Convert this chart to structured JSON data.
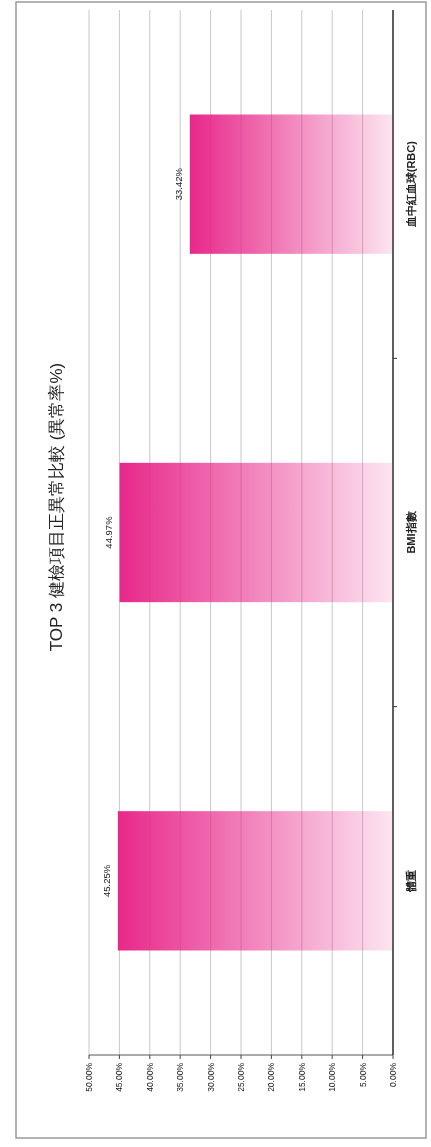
{
  "chart_data": {
    "type": "bar",
    "orientation": "horizontal",
    "title": "TOP 3 健檢項目正異常比較 (異常率%)",
    "categories": [
      "血中紅血球(RBC)",
      "BMI指數",
      "體重"
    ],
    "values": [
      33.42,
      44.97,
      45.25
    ],
    "value_labels": [
      "33.42%",
      "44.97%",
      "45.25%"
    ],
    "color": "#e8288a",
    "xlim": [
      50,
      0
    ],
    "xticks": [
      {
        "value": 50,
        "label": "50.00%"
      },
      {
        "value": 45,
        "label": "45.00%"
      },
      {
        "value": 40,
        "label": "40.00%"
      },
      {
        "value": 35,
        "label": "35.00%"
      },
      {
        "value": 30,
        "label": "30.00%"
      },
      {
        "value": 25,
        "label": "25.00%"
      },
      {
        "value": 20,
        "label": "20.00%"
      },
      {
        "value": 15,
        "label": "15.00%"
      },
      {
        "value": 10,
        "label": "10.00%"
      },
      {
        "value": 5,
        "label": "5.00%"
      },
      {
        "value": 0,
        "label": "0.00%"
      }
    ],
    "grid": "x"
  }
}
